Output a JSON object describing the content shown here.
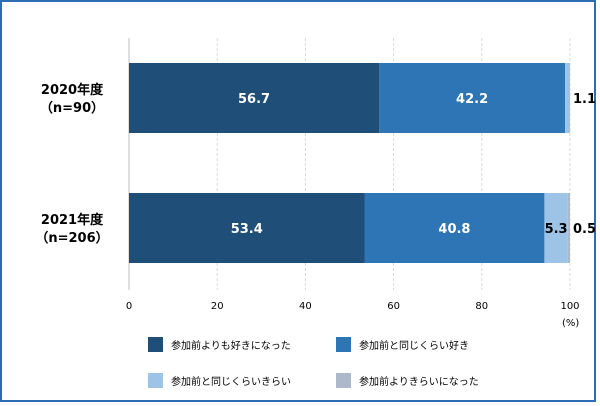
{
  "chart_data": {
    "type": "bar",
    "orientation": "horizontal",
    "stacked": true,
    "categories": [
      {
        "line1": "2020年度",
        "line2": "（n=90）"
      },
      {
        "line1": "2021年度",
        "line2": "（n=206）"
      }
    ],
    "series": [
      {
        "name": "参加前よりも好きになった",
        "color": "#1f4e79",
        "values": [
          56.7,
          53.4
        ],
        "label_color": "#ffffff"
      },
      {
        "name": "参加前と同じくらい好き",
        "color": "#2e75b6",
        "values": [
          42.2,
          40.8
        ],
        "label_color": "#ffffff"
      },
      {
        "name": "参加前と同じくらいきらい",
        "color": "#9dc3e6",
        "values": [
          1.1,
          5.3
        ],
        "label_color": "#000000"
      },
      {
        "name": "参加前よりきらいになった",
        "color": "#adb9ca",
        "values": [
          0,
          0.5
        ],
        "label_color": "#000000"
      }
    ],
    "data_labels": [
      [
        "56.7",
        "42.2",
        "1.1",
        ""
      ],
      [
        "53.4",
        "40.8",
        "5.3",
        "0.5"
      ]
    ],
    "xlim": [
      0,
      100
    ],
    "xticks": [
      0,
      20,
      40,
      60,
      80,
      100
    ],
    "x_unit": "(%)",
    "grid": true,
    "legend_position": "bottom"
  }
}
